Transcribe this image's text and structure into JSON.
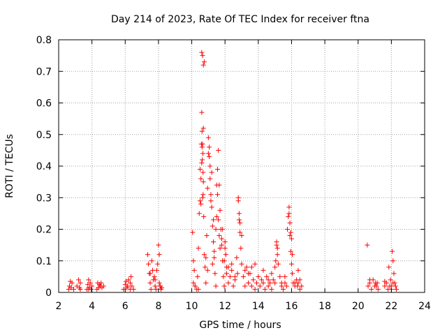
{
  "chart_data": {
    "type": "scatter",
    "title": "Day 214 of 2023, Rate Of TEC Index for receiver ftna",
    "xlabel": "GPS time / hours",
    "ylabel": "ROTI / TECUs",
    "xlim": [
      2,
      24
    ],
    "ylim": [
      0,
      0.8
    ],
    "xticks": [
      2,
      4,
      6,
      8,
      10,
      12,
      14,
      16,
      18,
      20,
      22,
      24
    ],
    "xtick_labels": [
      "2",
      "4",
      "6",
      "8",
      "10",
      "12",
      "14",
      "16",
      "18",
      "20",
      "22",
      "24"
    ],
    "yticks": [
      0,
      0.1,
      0.2,
      0.3,
      0.4,
      0.5,
      0.6,
      0.7,
      0.8
    ],
    "ytick_labels": [
      "0",
      "0.1",
      "0.2",
      "0.3",
      "0.4",
      "0.5",
      "0.6",
      "0.7",
      "0.8"
    ],
    "grid": true,
    "legend": "none",
    "marker": "plus",
    "color": "#ff0000",
    "series": [
      {
        "x": [
          2.6,
          2.65,
          2.7,
          2.75,
          2.8,
          2.9,
          3.1,
          3.2,
          3.25,
          3.3,
          3.7,
          3.75,
          3.8,
          3.85,
          3.9,
          3.95,
          4.0,
          4.3,
          4.35,
          4.4,
          4.45,
          4.5,
          4.55,
          4.6,
          4.7,
          5.9,
          6.0,
          6.05,
          6.1,
          6.15,
          6.2,
          6.3,
          6.35,
          6.4,
          6.5,
          7.35,
          7.4,
          7.45,
          7.5,
          7.55,
          7.6,
          7.65,
          7.7,
          7.75,
          7.8,
          7.85,
          7.9,
          7.95,
          8.0,
          8.05,
          8.1,
          8.15,
          8.2,
          10.05,
          10.1,
          10.15,
          10.2,
          10.3,
          10.35,
          10.4,
          10.45,
          10.5,
          10.55,
          10.58,
          10.6,
          10.62,
          10.63,
          10.65,
          10.67,
          10.68,
          10.7,
          10.72,
          10.75,
          10.8,
          10.85,
          10.9,
          10.95,
          11.0,
          11.05,
          11.1,
          11.15,
          11.2,
          11.25,
          11.3,
          11.35,
          11.4,
          11.45,
          11.5,
          11.55,
          11.6,
          11.65,
          11.7,
          11.75,
          11.8,
          11.85,
          11.9,
          11.95,
          12.0,
          12.05,
          12.1,
          12.2,
          12.3,
          12.4,
          12.5,
          12.6,
          12.7,
          12.75,
          12.8,
          12.85,
          12.9,
          12.95,
          13.0,
          13.1,
          13.2,
          13.3,
          13.4,
          13.5,
          13.6,
          13.7,
          13.8,
          13.9,
          14.0,
          14.1,
          14.2,
          14.3,
          14.4,
          14.5,
          14.6,
          14.7,
          14.8,
          14.9,
          15.0,
          15.05,
          15.1,
          15.15,
          15.2,
          15.3,
          15.4,
          15.5,
          15.6,
          15.7,
          15.75,
          15.8,
          15.85,
          15.9,
          15.95,
          16.0,
          16.05,
          16.1,
          16.2,
          16.3,
          16.4,
          16.5,
          16.6,
          20.55,
          20.6,
          20.7,
          20.8,
          20.9,
          21.0,
          21.05,
          21.1,
          21.15,
          21.2,
          21.6,
          21.7,
          21.8,
          21.85,
          21.9,
          21.95,
          22.0,
          22.05,
          22.1,
          22.15,
          22.2,
          22.25,
          22.3,
          10.6,
          10.65,
          10.7,
          10.75,
          10.7,
          10.65,
          10.62,
          10.6,
          10.55,
          10.5,
          10.68,
          11.0,
          11.05,
          11.1,
          11.15,
          11.2,
          11.3,
          11.5,
          11.55,
          11.6,
          11.65,
          11.7,
          12.8,
          12.85,
          12.9,
          13.0,
          15.1,
          15.15,
          15.85,
          15.9,
          15.95,
          16.0,
          16.05,
          12.0,
          11.95,
          11.8,
          11.85,
          13.6,
          13.8,
          14.3,
          16.4,
          16.5,
          20.7,
          21.6,
          22.0,
          22.1,
          7.5,
          7.8,
          8.05,
          8.1,
          6.3,
          3.3,
          3.8,
          12.2,
          12.4,
          12.6,
          13.2,
          13.4,
          14.6,
          14.8,
          15.0,
          15.4,
          15.6,
          16.2,
          16.35,
          11.45,
          11.35,
          11.25,
          10.85,
          10.95,
          12.1,
          10.1,
          10.2,
          10.4
        ],
        "y": [
          0.01,
          0.02,
          0.035,
          0.015,
          0.03,
          0.01,
          0.02,
          0.04,
          0.015,
          0.03,
          0.01,
          0.025,
          0.04,
          0.015,
          0.03,
          0.01,
          0.02,
          0.01,
          0.03,
          0.015,
          0.025,
          0.02,
          0.03,
          0.015,
          0.02,
          0.01,
          0.025,
          0.035,
          0.015,
          0.02,
          0.04,
          0.01,
          0.05,
          0.02,
          0.01,
          0.12,
          0.09,
          0.06,
          0.03,
          0.01,
          0.1,
          0.07,
          0.04,
          0.05,
          0.02,
          0.01,
          0.07,
          0.09,
          0.15,
          0.12,
          0.02,
          0.01,
          0.015,
          0.19,
          0.1,
          0.07,
          0.02,
          0.01,
          0.05,
          0.14,
          0.25,
          0.39,
          0.28,
          0.47,
          0.57,
          0.51,
          0.42,
          0.3,
          0.44,
          0.38,
          0.35,
          0.24,
          0.12,
          0.08,
          0.03,
          0.18,
          0.33,
          0.49,
          0.46,
          0.4,
          0.31,
          0.27,
          0.21,
          0.16,
          0.11,
          0.06,
          0.02,
          0.24,
          0.39,
          0.45,
          0.34,
          0.26,
          0.2,
          0.17,
          0.1,
          0.05,
          0.02,
          0.16,
          0.12,
          0.08,
          0.03,
          0.05,
          0.07,
          0.02,
          0.04,
          0.11,
          0.06,
          0.3,
          0.23,
          0.19,
          0.14,
          0.09,
          0.05,
          0.02,
          0.08,
          0.03,
          0.06,
          0.02,
          0.04,
          0.01,
          0.03,
          0.05,
          0.02,
          0.04,
          0.03,
          0.01,
          0.05,
          0.02,
          0.03,
          0.01,
          0.04,
          0.03,
          0.1,
          0.16,
          0.14,
          0.09,
          0.05,
          0.02,
          0.01,
          0.03,
          0.02,
          0.2,
          0.24,
          0.27,
          0.18,
          0.13,
          0.09,
          0.06,
          0.03,
          0.02,
          0.04,
          0.07,
          0.01,
          0.02,
          0.15,
          0.02,
          0.03,
          0.01,
          0.04,
          0.02,
          0.03,
          0.02,
          0.03,
          0.01,
          0.02,
          0.03,
          0.01,
          0.08,
          0.02,
          0.04,
          0.01,
          0.13,
          0.1,
          0.06,
          0.03,
          0.02,
          0.01,
          0.76,
          0.75,
          0.72,
          0.73,
          0.52,
          0.47,
          0.46,
          0.41,
          0.36,
          0.29,
          0.31,
          0.44,
          0.43,
          0.36,
          0.29,
          0.38,
          0.23,
          0.34,
          0.31,
          0.23,
          0.18,
          0.14,
          0.29,
          0.25,
          0.22,
          0.18,
          0.15,
          0.12,
          0.25,
          0.22,
          0.19,
          0.17,
          0.12,
          0.14,
          0.1,
          0.15,
          0.2,
          0.08,
          0.09,
          0.07,
          0.03,
          0.04,
          0.04,
          0.035,
          0.02,
          0.03,
          0.06,
          0.04,
          0.03,
          0.02,
          0.03,
          0.01,
          0.01,
          0.08,
          0.09,
          0.05,
          0.07,
          0.06,
          0.04,
          0.06,
          0.08,
          0.03,
          0.05,
          0.03,
          0.02,
          0.2,
          0.13,
          0.09,
          0.11,
          0.07,
          0.06,
          0.03,
          0.02,
          0.01
        ]
      }
    ]
  }
}
